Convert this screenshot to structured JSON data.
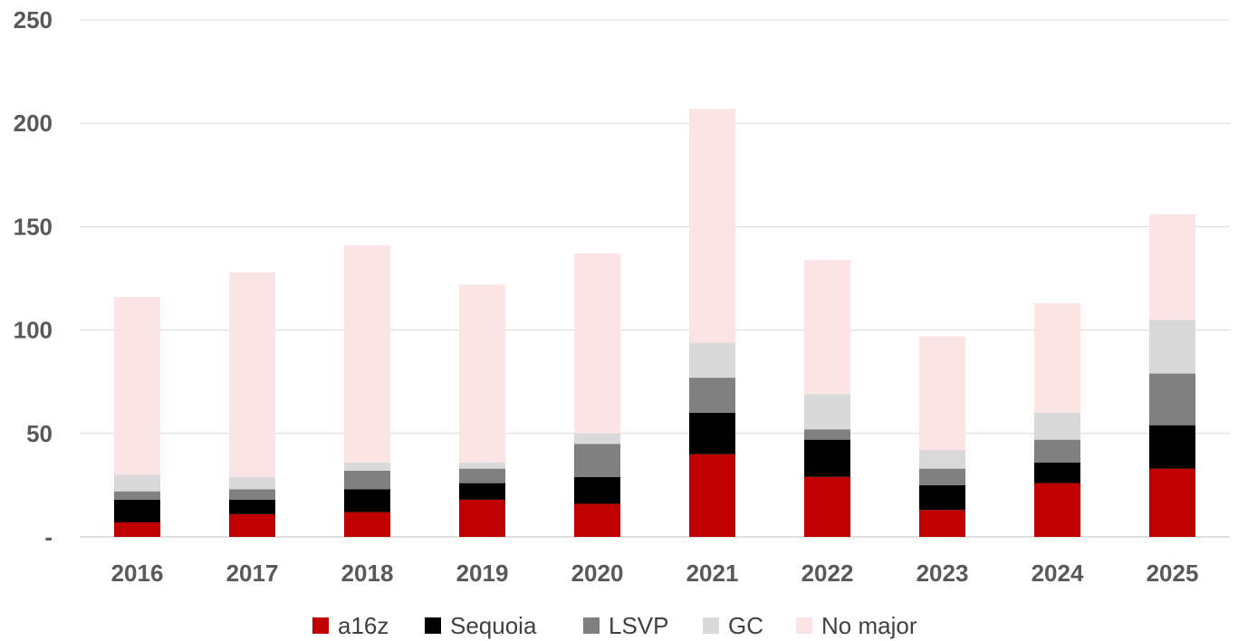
{
  "chart_data": {
    "type": "bar",
    "stacked": true,
    "categories": [
      "2016",
      "2017",
      "2018",
      "2019",
      "2020",
      "2021",
      "2022",
      "2023",
      "2024",
      "2025"
    ],
    "series": [
      {
        "name": "a16z",
        "color": "#c00000",
        "values": [
          7,
          11,
          12,
          18,
          16,
          40,
          29,
          13,
          26,
          33
        ]
      },
      {
        "name": "Sequoia",
        "color": "#000000",
        "values": [
          11,
          7,
          11,
          8,
          13,
          20,
          18,
          12,
          10,
          21
        ]
      },
      {
        "name": "LSVP",
        "color": "#808080",
        "values": [
          4,
          5,
          9,
          7,
          16,
          17,
          5,
          8,
          11,
          25
        ]
      },
      {
        "name": "GC",
        "color": "#d9d9d9",
        "values": [
          8,
          6,
          4,
          3,
          5,
          17,
          17,
          9,
          13,
          26
        ]
      },
      {
        "name": "No major",
        "color": "#fce4e4",
        "values": [
          86,
          99,
          105,
          86,
          87,
          113,
          65,
          55,
          53,
          51
        ]
      }
    ],
    "ylim": [
      0,
      250
    ],
    "yticks": [
      0,
      50,
      100,
      150,
      200,
      250
    ],
    "ytick_labels": [
      "-",
      "50",
      "100",
      "150",
      "200",
      "250"
    ],
    "title": "",
    "xlabel": "",
    "ylabel": "",
    "grid": true,
    "legend_position": "bottom"
  }
}
